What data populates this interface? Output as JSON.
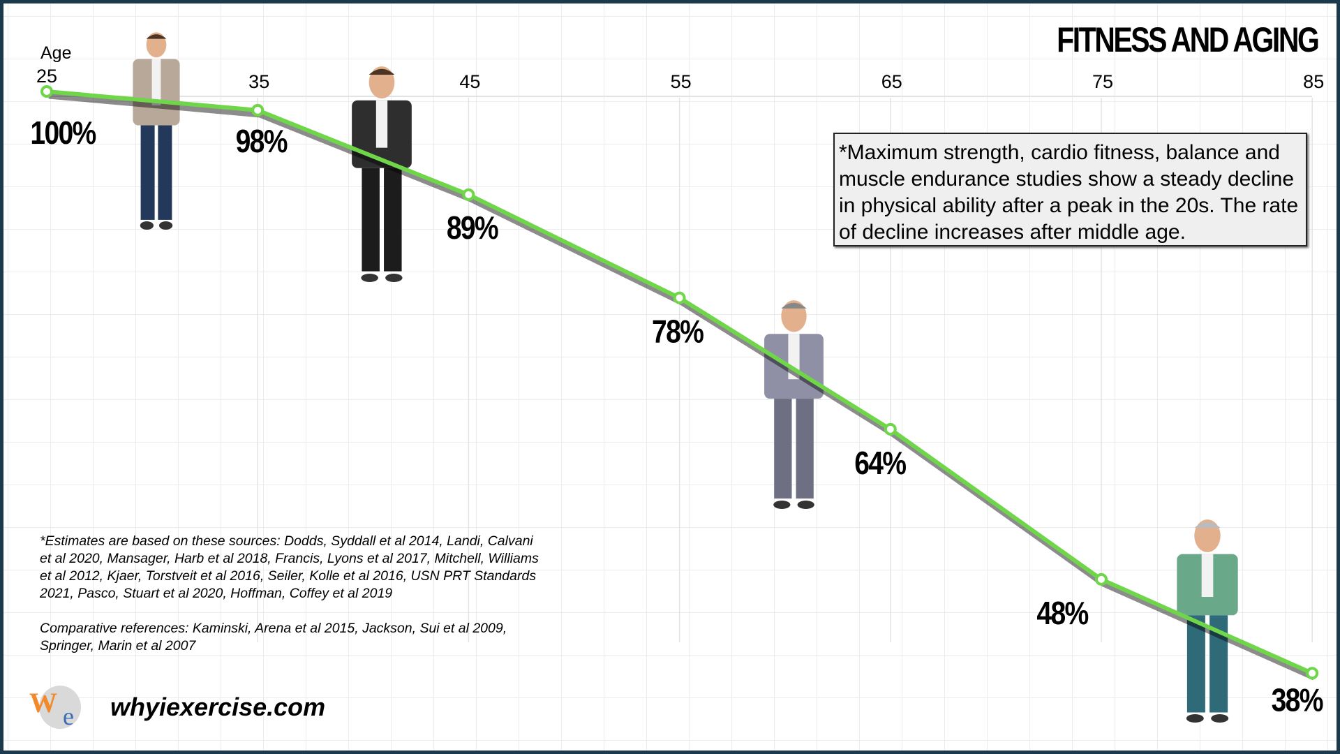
{
  "title": "FITNESS AND AGING",
  "age_axis_label": "Age",
  "note": "*Maximum strength, cardio fitness, balance and muscle endurance studies show a steady decline in physical ability after a peak in the 20s. The rate of decline increases after middle age.",
  "sources": [
    "*Estimates are based on these sources:  Dodds, Syddall et al 2014, Landi, Calvani et al 2020, Mansager, Harb et al 2018, Francis, Lyons et al 2017, Mitchell, Williams et al 2012,  Kjaer, Torstveit et al 2016, Seiler, Kolle et al 2016, USN PRT Standards 2021, Pasco, Stuart et al 2020, Hoffman, Coffey et al 2019",
    "Comparative references:  Kaminski, Arena et al 2015, Jackson, Sui et al 2009, Springer, Marin et al 2007"
  ],
  "website": "whyiexercise.com",
  "logo_text": "We WHY I EXERCISE",
  "colors": {
    "line": "#6fd64a",
    "border": "#1d3a4c",
    "note_bg": "#efefef",
    "logo_orange": "#f08a2c",
    "logo_blue": "#3b6eb4"
  },
  "chart_data": {
    "type": "line",
    "title": "FITNESS AND AGING",
    "xlabel": "Age",
    "ylabel": "",
    "x": [
      25,
      35,
      45,
      55,
      65,
      75,
      85
    ],
    "series": [
      {
        "values": [
          100,
          98,
          89,
          78,
          64,
          48,
          38
        ]
      }
    ],
    "data_labels": [
      "100%",
      "98%",
      "89%",
      "78%",
      "64%",
      "48%",
      "38%"
    ],
    "x_tick_labels": [
      "25",
      "35",
      "45",
      "55",
      "65",
      "75",
      "85"
    ],
    "xlim": [
      25,
      85
    ],
    "ylim": [
      38,
      100
    ],
    "x_axis_position": "top",
    "grid": true,
    "figures": [
      "young-man",
      "man-in-black-suit",
      "older-man-in-gray-suit",
      "elderly-man-with-cardigan"
    ]
  }
}
